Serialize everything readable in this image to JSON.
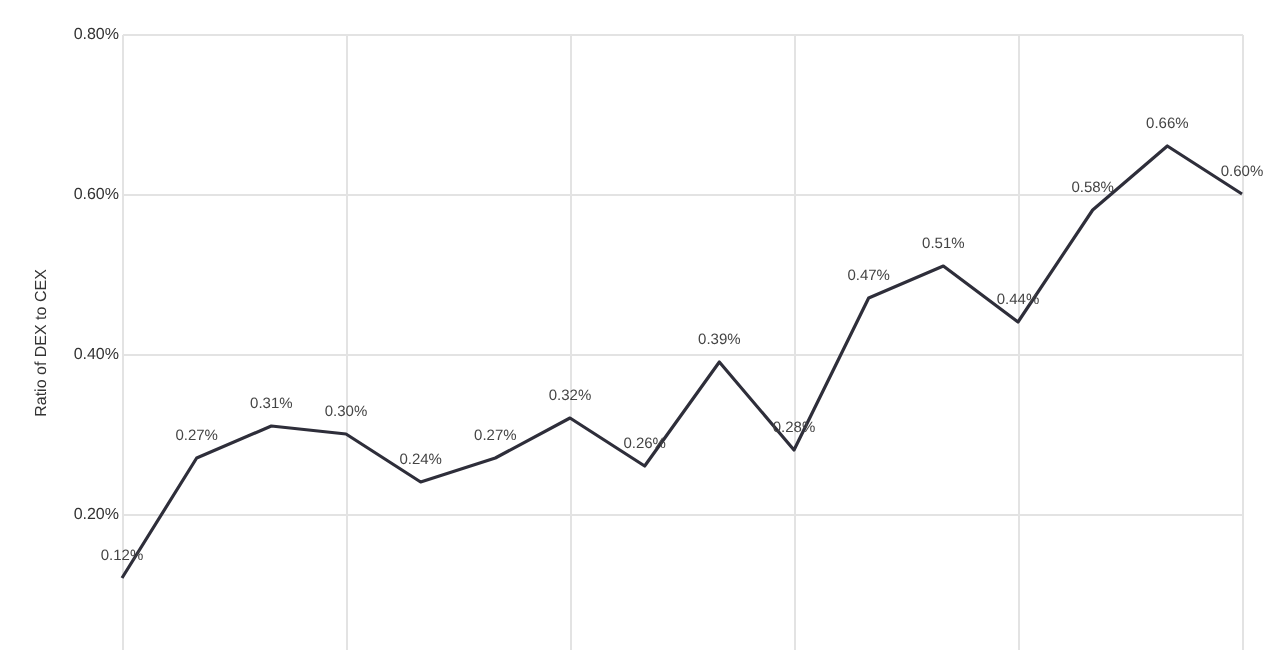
{
  "chart_data": {
    "type": "line",
    "ylabel": "Ratio of DEX to CEX",
    "categories": [
      null,
      null,
      null,
      null,
      null,
      null,
      null,
      null,
      null,
      null,
      null,
      null,
      null,
      null,
      null,
      null
    ],
    "series": [
      {
        "color": "#2e2e3a",
        "values": [
          0.12,
          0.27,
          0.31,
          0.3,
          0.24,
          0.27,
          0.32,
          0.26,
          0.39,
          0.28,
          0.47,
          0.51,
          0.44,
          0.58,
          0.66,
          0.6
        ],
        "value_labels": [
          "0.12%",
          "0.27%",
          "0.31%",
          "0.30%",
          "0.24%",
          "0.27%",
          "0.32%",
          "0.26%",
          "0.39%",
          "0.28%",
          "0.47%",
          "0.51%",
          "0.44%",
          "0.58%",
          "0.66%",
          "0.60%"
        ]
      }
    ],
    "ylim": [
      0.03,
      0.8
    ],
    "yticks": [
      {
        "value": 0.2,
        "label": "0.20%"
      },
      {
        "value": 0.4,
        "label": "0.40%"
      },
      {
        "value": 0.6,
        "label": "0.60%"
      },
      {
        "value": 0.8,
        "label": "0.80%"
      }
    ],
    "grid": true,
    "marker": "none",
    "line_style": "solid"
  }
}
